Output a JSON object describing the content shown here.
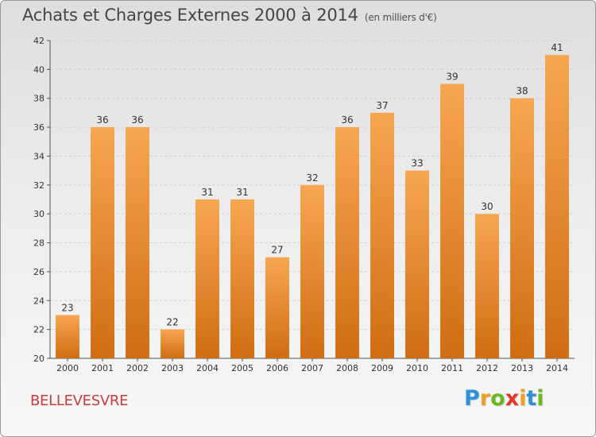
{
  "header": {
    "title": "Achats et Charges Externes 2000 à 2014",
    "subtitle": "(en milliers d'€)"
  },
  "footer": {
    "commune": "BELLEVESVRE",
    "logo_letters": [
      {
        "ch": "P",
        "color": "#2f8fd8"
      },
      {
        "ch": "r",
        "color": "#f0a020"
      },
      {
        "ch": "o",
        "color": "#6ab820"
      },
      {
        "ch": "x",
        "color": "#e03a2a"
      },
      {
        "ch": "i",
        "color": "#f0a020"
      },
      {
        "ch": "t",
        "color": "#2f8fd8"
      },
      {
        "ch": "i",
        "color": "#6ab820"
      }
    ]
  },
  "colors": {
    "bar_top": "#f7a652",
    "bar_bottom": "#cf6d13",
    "grid": "#cfcfcf",
    "axis": "#555555"
  },
  "chart_data": {
    "type": "bar",
    "title": "Achats et Charges Externes 2000 à 2014",
    "subtitle": "(en milliers d'€)",
    "categories": [
      "2000",
      "2001",
      "2002",
      "2003",
      "2004",
      "2005",
      "2006",
      "2007",
      "2008",
      "2009",
      "2010",
      "2011",
      "2012",
      "2013",
      "2014"
    ],
    "values": [
      23,
      36,
      36,
      22,
      31,
      31,
      27,
      32,
      36,
      37,
      33,
      39,
      30,
      38,
      41
    ],
    "ylim": [
      20,
      42
    ],
    "yticks": [
      20,
      22,
      24,
      26,
      28,
      30,
      32,
      34,
      36,
      38,
      40,
      42
    ],
    "grid": true,
    "xlabel": "",
    "ylabel": ""
  }
}
